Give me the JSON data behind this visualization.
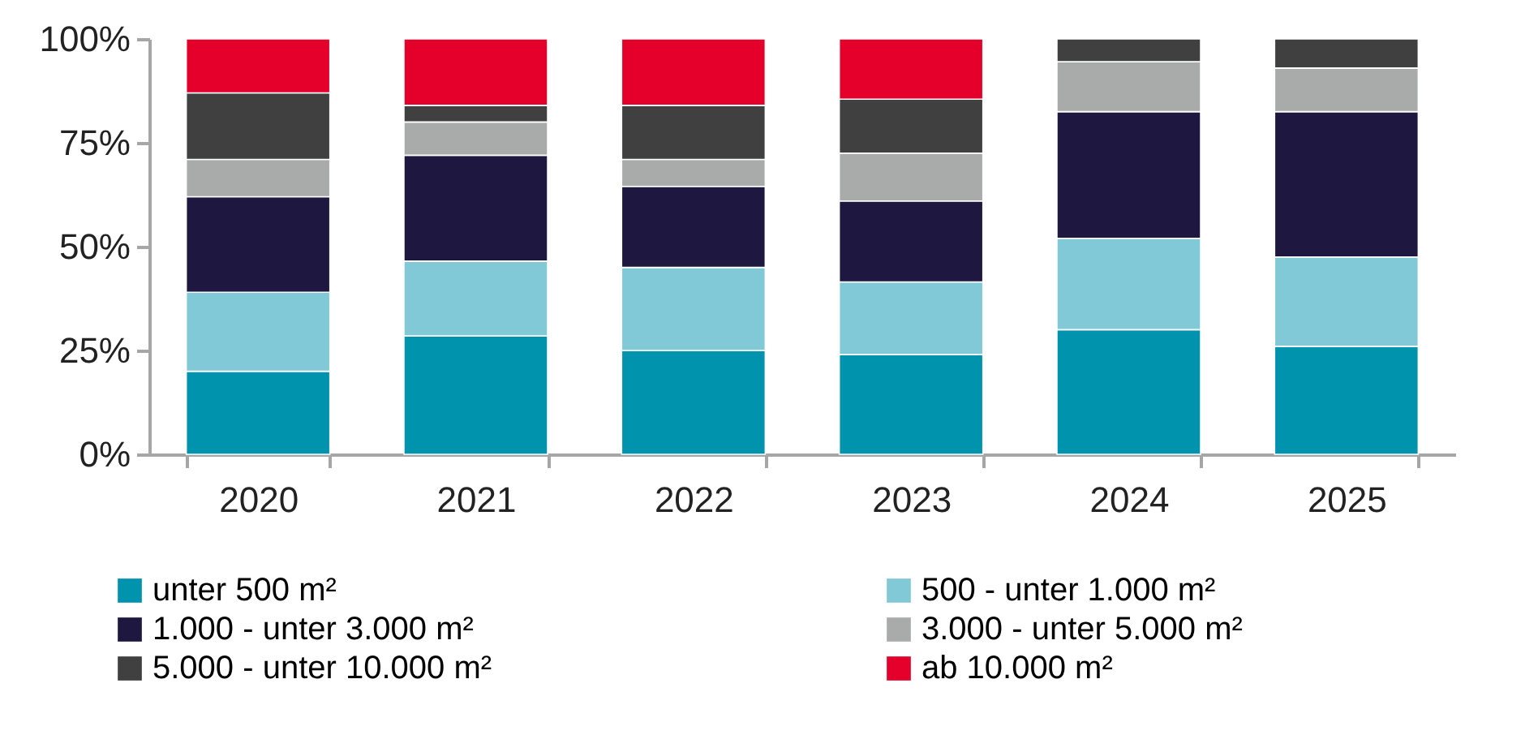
{
  "chart_data": {
    "type": "bar",
    "stacked": true,
    "categories": [
      "2020",
      "2021",
      "2022",
      "2023",
      "2024",
      "2025"
    ],
    "series": [
      {
        "name": "unter 500 m²",
        "color": "#0093ae",
        "values": [
          20,
          28.5,
          25,
          24,
          30,
          26
        ]
      },
      {
        "name": "500 - unter 1.000 m²",
        "color": "#81c9d6",
        "values": [
          19,
          18,
          20,
          17.5,
          22,
          21.5
        ]
      },
      {
        "name": "1.000 - unter 3.000 m²",
        "color": "#1e173f",
        "values": [
          23,
          25.5,
          19.5,
          19.5,
          30.5,
          35
        ]
      },
      {
        "name": "3.000 - unter 5.000 m²",
        "color": "#a9aaaa",
        "values": [
          9,
          8,
          6.5,
          11.5,
          12,
          10.5
        ]
      },
      {
        "name": "5.000 - unter 10.000 m²",
        "color": "#404040",
        "values": [
          16,
          4,
          13,
          13,
          5.5,
          7
        ]
      },
      {
        "name": "ab 10.000 m²",
        "color": "#e4002b",
        "values": [
          13,
          16,
          16,
          14.5,
          null,
          null
        ]
      }
    ],
    "ylim": [
      0,
      100
    ],
    "yticks": [
      {
        "value": 0,
        "label": "0%"
      },
      {
        "value": 25,
        "label": "25%"
      },
      {
        "value": 50,
        "label": "50%"
      },
      {
        "value": 75,
        "label": "75%"
      },
      {
        "value": 100,
        "label": "100%"
      }
    ],
    "grid": false,
    "legend": "bottom"
  }
}
